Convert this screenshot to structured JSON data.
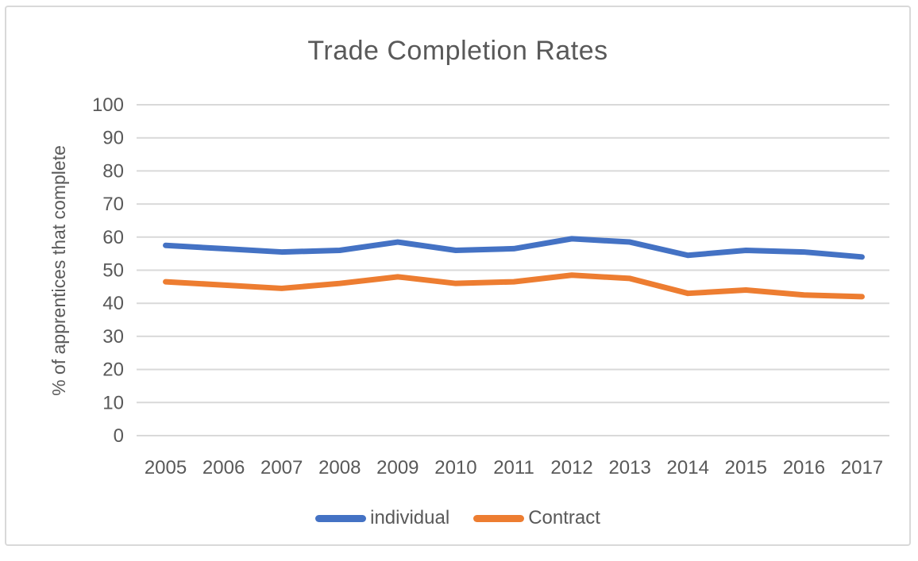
{
  "chart_data": {
    "type": "line",
    "title": "Trade Completion Rates",
    "ylabel": "% of apprentices that complete",
    "xlabel": "",
    "categories": [
      "2005",
      "2006",
      "2007",
      "2008",
      "2009",
      "2010",
      "2011",
      "2012",
      "2013",
      "2014",
      "2015",
      "2016",
      "2017"
    ],
    "series": [
      {
        "name": "individual",
        "color": "#4472C4",
        "values": [
          57.5,
          56.5,
          55.5,
          56,
          58.5,
          56,
          56.5,
          59.5,
          58.5,
          54.5,
          56,
          55.5,
          54
        ]
      },
      {
        "name": "Contract",
        "color": "#ED7D31",
        "values": [
          46.5,
          45.5,
          44.5,
          46,
          48,
          46,
          46.5,
          48.5,
          47.5,
          43,
          44,
          42.5,
          42
        ]
      }
    ],
    "ylim": [
      0,
      100
    ],
    "yticks": [
      0,
      10,
      20,
      30,
      40,
      50,
      60,
      70,
      80,
      90,
      100
    ],
    "grid": true,
    "legend_position": "bottom"
  },
  "styles": {
    "text_color": "#595959",
    "grid_color": "#D9D9D9",
    "frame_border_color": "#D9D9D9",
    "background": "#FFFFFF"
  }
}
